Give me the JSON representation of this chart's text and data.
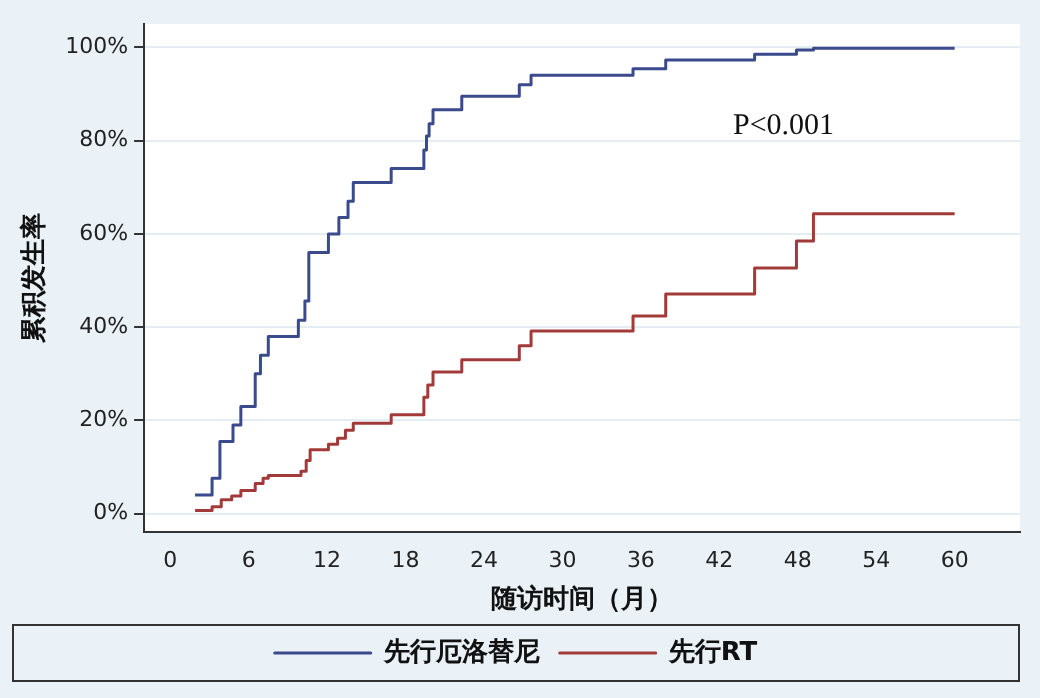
{
  "chart_data": {
    "type": "step",
    "xlabel": "随访时间（月）",
    "ylabel": "累积发生率",
    "xlim": [
      -2,
      65
    ],
    "xticks": [
      0,
      6,
      12,
      18,
      24,
      30,
      36,
      42,
      48,
      54,
      60
    ],
    "ylim": [
      -4,
      105
    ],
    "yticks": [
      {
        "value": 0,
        "label": "0%"
      },
      {
        "value": 20,
        "label": "20%"
      },
      {
        "value": 40,
        "label": "40%"
      },
      {
        "value": 60,
        "label": "60%"
      },
      {
        "value": 80,
        "label": "80%"
      },
      {
        "value": 100,
        "label": "100%"
      }
    ],
    "grid": "y",
    "legend": "bottom",
    "marker": "none",
    "line_style": "solid",
    "annotations": [
      "P<0.001"
    ],
    "series": [
      {
        "name": "先行厄洛替尼",
        "color": "#3b4a8c",
        "x": [
          1.9,
          3.2,
          3.8,
          4.8,
          5.4,
          6.5,
          6.9,
          7.5,
          9.8,
          10.3,
          10.6,
          12.1,
          12.9,
          13.6,
          14,
          16.9,
          19.4,
          19.6,
          19.8,
          20.1,
          22.3,
          26.7,
          27.6,
          35.4,
          37.9,
          44.7,
          47.9,
          49.2,
          60
        ],
        "values": [
          4,
          7.6,
          15.5,
          19,
          23,
          30,
          34,
          38,
          41.5,
          45.6,
          56,
          60,
          63.5,
          67,
          71,
          74,
          78,
          81,
          83.6,
          86.6,
          89.5,
          92,
          94,
          95.4,
          97.3,
          98.5,
          99.4,
          99.8,
          99.8
        ]
      },
      {
        "name": "先行RT",
        "color": "#a23a3a",
        "x": [
          1.9,
          3.2,
          3.9,
          4.7,
          5.4,
          6.5,
          7.1,
          7.5,
          10,
          10.4,
          10.7,
          12.1,
          12.8,
          13.4,
          14,
          16.9,
          19.4,
          19.7,
          20.1,
          22.3,
          26.7,
          27.6,
          35.4,
          37.9,
          44.7,
          47.9,
          49.2,
          60
        ],
        "values": [
          0.7,
          1.5,
          3,
          3.8,
          5,
          6.5,
          7.6,
          8.2,
          9.1,
          11.4,
          13.7,
          14.9,
          16.2,
          17.9,
          19.4,
          21.2,
          25,
          27.6,
          30.4,
          33,
          36,
          39.2,
          42.4,
          47.1,
          52.7,
          58.5,
          64.3,
          64.3
        ]
      }
    ]
  }
}
